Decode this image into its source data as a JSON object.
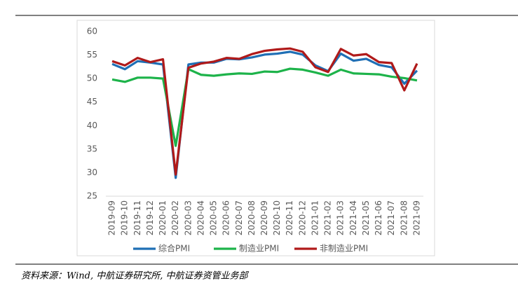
{
  "chart_data": {
    "type": "line",
    "categories": [
      "2019-09",
      "2019-10",
      "2019-11",
      "2019-12",
      "2020-01",
      "2020-02",
      "2020-03",
      "2020-04",
      "2020-05",
      "2020-06",
      "2020-07",
      "2020-08",
      "2020-09",
      "2020-10",
      "2020-11",
      "2020-12",
      "2021-01",
      "2021-02",
      "2021-03",
      "2021-04",
      "2021-05",
      "2021-06",
      "2021-07",
      "2021-08",
      "2021-09"
    ],
    "series": [
      {
        "name": "综合PMI",
        "color": "#1f6fb5",
        "values": [
          53.1,
          52.0,
          53.7,
          53.4,
          53.0,
          28.9,
          53.0,
          53.4,
          53.4,
          54.2,
          54.1,
          54.5,
          55.1,
          55.3,
          55.7,
          55.1,
          52.8,
          51.6,
          55.3,
          53.8,
          54.2,
          52.9,
          52.4,
          48.9,
          51.7
        ]
      },
      {
        "name": "制造业PMI",
        "color": "#1db34a",
        "values": [
          49.8,
          49.3,
          50.2,
          50.2,
          50.0,
          35.7,
          52.0,
          50.8,
          50.6,
          50.9,
          51.1,
          51.0,
          51.5,
          51.4,
          52.1,
          51.9,
          51.3,
          50.6,
          51.9,
          51.1,
          51.0,
          50.9,
          50.4,
          50.1,
          49.6
        ]
      },
      {
        "name": "非制造业PMI",
        "color": "#b01a1a",
        "values": [
          53.7,
          52.8,
          54.4,
          53.5,
          54.1,
          29.6,
          52.3,
          53.2,
          53.6,
          54.4,
          54.2,
          55.2,
          55.9,
          56.2,
          56.4,
          55.7,
          52.4,
          51.4,
          56.3,
          54.9,
          55.2,
          53.5,
          53.3,
          47.5,
          53.2
        ]
      }
    ],
    "ylim": [
      25,
      60
    ],
    "yticks": [
      25,
      30,
      35,
      40,
      45,
      50,
      55,
      60
    ],
    "grid": false,
    "source": "资料来源：Wind, 中航证券研究所, 中航证券资管业务部"
  }
}
